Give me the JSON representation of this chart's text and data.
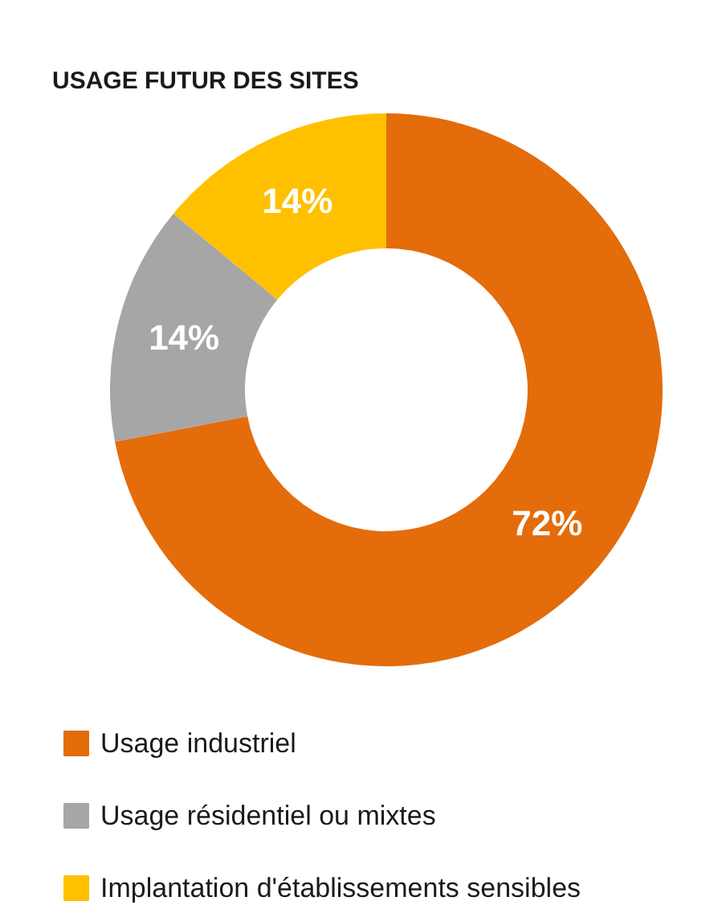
{
  "chart_data": {
    "type": "donut",
    "title": "USAGE FUTUR DES SITES",
    "categories": [
      "Usage industriel",
      "Usage résidentiel  ou mixtes",
      "Implantation  d'établissements  sensibles"
    ],
    "values": [
      72,
      14,
      14
    ],
    "colors": [
      "#e46c0a",
      "#a6a6a6",
      "#ffc000"
    ],
    "value_labels": [
      "72%",
      "14%",
      "14%"
    ],
    "legend": "bottom"
  }
}
